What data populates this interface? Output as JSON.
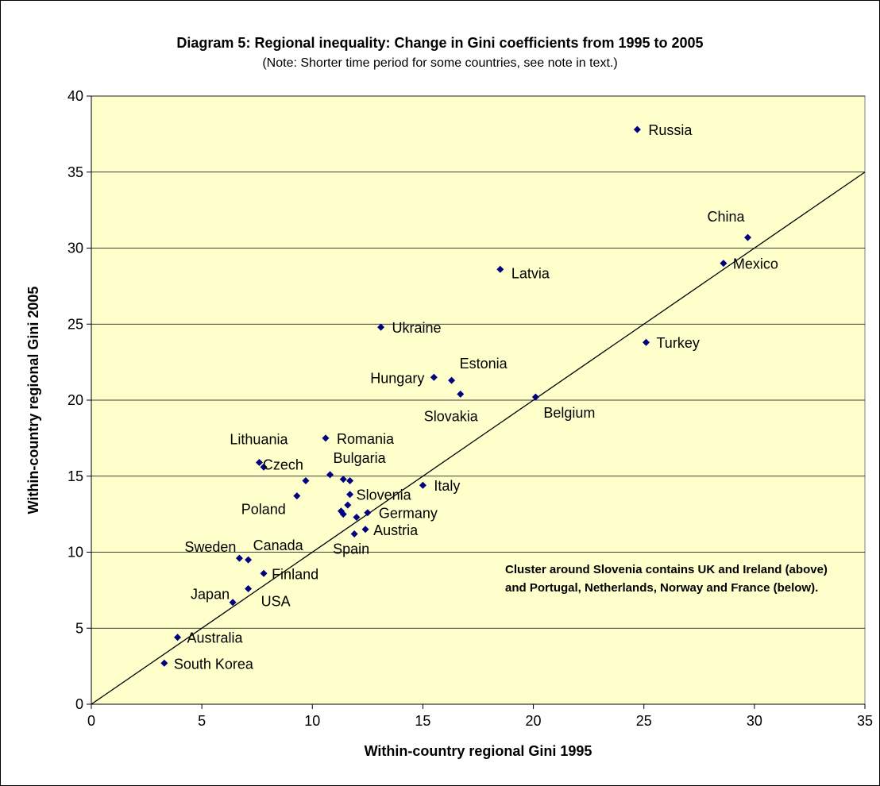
{
  "chart_data": {
    "type": "scatter",
    "title": "Diagram 5: Regional inequality: Change in Gini coefficients from 1995 to 2005",
    "subtitle": "(Note: Shorter time period for some countries, see note in text.)",
    "xlabel": "Within-country regional Gini 1995",
    "ylabel": "Within-country regional Gini 2005",
    "xlim": [
      0,
      35
    ],
    "ylim": [
      0,
      40
    ],
    "x_ticks": [
      0,
      5,
      10,
      15,
      20,
      25,
      30,
      35
    ],
    "y_ticks": [
      0,
      5,
      10,
      15,
      20,
      25,
      30,
      35,
      40
    ],
    "grid": "horizontal",
    "plot_background": "#ffffcc",
    "marker_color": "#000080",
    "reference_line": {
      "x": [
        0,
        35
      ],
      "y": [
        0,
        35
      ]
    },
    "annotation": "Cluster around Slovenia contains UK and Ireland (above) and Portugal, Netherlands, Norway and France (below).",
    "points": [
      {
        "label": "Russia",
        "x": 24.7,
        "y": 37.8
      },
      {
        "label": "China",
        "x": 29.7,
        "y": 30.7
      },
      {
        "label": "Mexico",
        "x": 28.6,
        "y": 29.0
      },
      {
        "label": "Latvia",
        "x": 18.5,
        "y": 28.6
      },
      {
        "label": "Ukraine",
        "x": 13.1,
        "y": 24.8
      },
      {
        "label": "Turkey",
        "x": 25.1,
        "y": 23.8
      },
      {
        "label": "Hungary",
        "x": 15.5,
        "y": 21.5
      },
      {
        "label": "Estonia",
        "x": 16.3,
        "y": 21.3
      },
      {
        "label": "Slovakia",
        "x": 16.7,
        "y": 20.4
      },
      {
        "label": "Belgium",
        "x": 20.1,
        "y": 20.2
      },
      {
        "label": "Romania",
        "x": 10.6,
        "y": 17.5
      },
      {
        "label": "Lithuania",
        "x": 7.6,
        "y": 15.9
      },
      {
        "label": "",
        "x": 7.8,
        "y": 15.6
      },
      {
        "label": "Bulgaria",
        "x": 10.8,
        "y": 15.1
      },
      {
        "label": "",
        "x": 11.4,
        "y": 14.8
      },
      {
        "label": "",
        "x": 11.7,
        "y": 14.7
      },
      {
        "label": "Czech",
        "x": 9.7,
        "y": 14.7
      },
      {
        "label": "Italy",
        "x": 15.0,
        "y": 14.4
      },
      {
        "label": "Slovenia",
        "x": 11.7,
        "y": 13.8
      },
      {
        "label": "Poland",
        "x": 9.3,
        "y": 13.7
      },
      {
        "label": "",
        "x": 11.6,
        "y": 13.1
      },
      {
        "label": "",
        "x": 11.3,
        "y": 12.7
      },
      {
        "label": "",
        "x": 11.4,
        "y": 12.5
      },
      {
        "label": "Germany",
        "x": 12.5,
        "y": 12.6
      },
      {
        "label": "",
        "x": 12.0,
        "y": 12.3
      },
      {
        "label": "Austria",
        "x": 12.4,
        "y": 11.5
      },
      {
        "label": "Spain",
        "x": 11.9,
        "y": 11.2
      },
      {
        "label": "Sweden",
        "x": 6.7,
        "y": 9.6
      },
      {
        "label": "Canada",
        "x": 7.1,
        "y": 9.5
      },
      {
        "label": "Finland",
        "x": 7.8,
        "y": 8.6
      },
      {
        "label": "USA",
        "x": 7.1,
        "y": 7.6
      },
      {
        "label": "Japan",
        "x": 6.4,
        "y": 6.7
      },
      {
        "label": "Australia",
        "x": 3.9,
        "y": 4.4
      },
      {
        "label": "South Korea",
        "x": 3.3,
        "y": 2.7
      }
    ]
  }
}
